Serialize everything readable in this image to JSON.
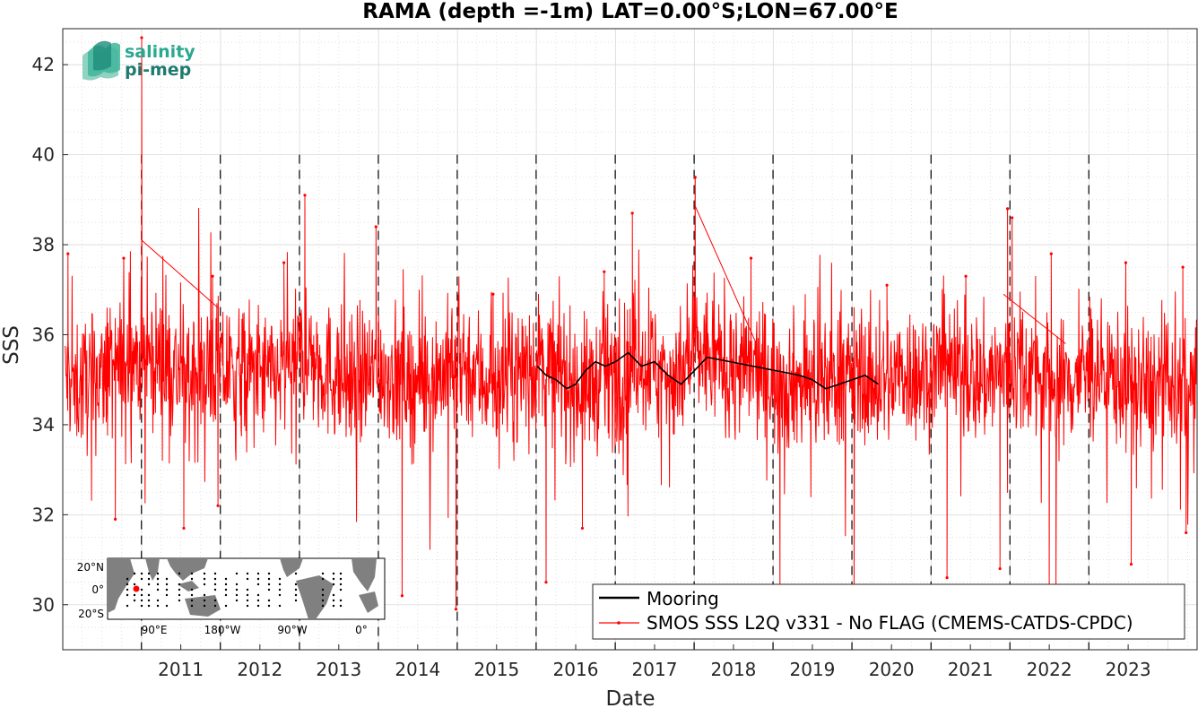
{
  "logo": {
    "line1": "salinity",
    "line2": "pi-mep"
  },
  "chart_data": {
    "type": "line",
    "title": "RAMA (depth =-1m) LAT=0.00°S;LON=67.00°E",
    "xlabel": "Date",
    "ylabel": "SSS",
    "xlim": [
      "2010-01-01",
      "2024-05-15"
    ],
    "ylim": [
      29,
      42.8
    ],
    "x_ticks": [
      "2011",
      "2012",
      "2013",
      "2014",
      "2015",
      "2016",
      "2017",
      "2018",
      "2019",
      "2020",
      "2021",
      "2022",
      "2023"
    ],
    "y_ticks": [
      30,
      32,
      34,
      36,
      38,
      40,
      42
    ],
    "grid": true,
    "legend": {
      "placement": "bottom-right"
    },
    "year_markers": [
      "2010-12-31",
      "2011-12-31",
      "2012-12-31",
      "2013-12-31",
      "2014-12-31",
      "2015-12-31",
      "2016-12-31",
      "2017-12-31",
      "2018-12-31",
      "2019-12-31",
      "2020-12-31",
      "2021-12-31",
      "2022-12-31"
    ],
    "series": [
      {
        "name": "Mooring",
        "color": "#000000",
        "x": [
          "2016-01-05",
          "2016-02-15",
          "2016-04-01",
          "2016-05-20",
          "2016-07-01",
          "2016-08-15",
          "2016-10-01",
          "2016-11-15",
          "2017-01-01",
          "2017-03-01",
          "2017-05-01",
          "2017-07-01",
          "2017-09-01",
          "2017-11-01",
          "2018-01-01",
          "2018-03-01",
          "2019-05-01",
          "2019-07-01",
          "2019-09-01",
          "2019-11-01",
          "2020-01-01",
          "2020-03-01",
          "2020-05-01"
        ],
        "y": [
          35.3,
          35.1,
          35.0,
          34.8,
          34.9,
          35.2,
          35.4,
          35.3,
          35.4,
          35.6,
          35.3,
          35.4,
          35.1,
          34.9,
          35.2,
          35.5,
          35.1,
          35.0,
          34.8,
          34.9,
          35.0,
          35.1,
          34.9
        ]
      },
      {
        "name": "SMOS SSS L2Q v331 - No FLAG  (CMEMS-CATDS-CPDC)",
        "color": "#ff0000",
        "x": [
          "2010-01-15",
          "2010-04-01",
          "2010-07-01",
          "2010-10-01",
          "2010-12-10",
          "2011-01-01",
          "2011-03-01",
          "2011-06-01",
          "2011-09-01",
          "2011-12-15",
          "2012-03-01",
          "2012-06-01",
          "2012-09-01",
          "2012-12-01",
          "2013-02-01",
          "2013-05-01",
          "2013-08-01",
          "2013-11-01",
          "2014-02-01",
          "2014-05-01",
          "2014-08-01",
          "2014-11-01",
          "2015-02-01",
          "2015-05-01",
          "2015-08-01",
          "2015-11-01",
          "2016-02-01",
          "2016-05-01",
          "2016-08-01",
          "2016-11-01",
          "2017-02-01",
          "2017-05-01",
          "2017-08-01",
          "2017-11-01",
          "2018-01-10",
          "2018-03-01",
          "2018-06-01",
          "2018-09-01",
          "2018-12-01",
          "2019-03-01",
          "2019-06-01",
          "2019-09-01",
          "2019-12-01",
          "2020-03-01",
          "2020-06-01",
          "2020-09-01",
          "2020-12-01",
          "2021-03-01",
          "2021-06-01",
          "2021-09-01",
          "2021-12-01",
          "2022-03-01",
          "2022-06-01",
          "2022-09-01",
          "2022-12-01",
          "2023-03-01",
          "2023-06-01",
          "2023-09-01",
          "2023-12-01",
          "2024-03-01"
        ],
        "y": [
          35.0,
          34.9,
          35.1,
          35.3,
          35.6,
          35.4,
          35.5,
          35.2,
          35.0,
          35.3,
          35.1,
          35.2,
          35.0,
          35.3,
          35.6,
          35.2,
          35.0,
          35.1,
          35.2,
          35.0,
          34.9,
          35.2,
          35.4,
          35.0,
          34.9,
          35.2,
          35.4,
          35.1,
          34.8,
          35.0,
          35.2,
          35.5,
          35.2,
          35.0,
          35.6,
          35.5,
          35.3,
          35.2,
          35.1,
          35.0,
          34.9,
          35.0,
          35.1,
          35.0,
          34.9,
          35.2,
          35.1,
          35.3,
          35.1,
          35.0,
          35.2,
          35.3,
          35.1,
          34.9,
          35.1,
          35.2,
          35.0,
          34.8,
          34.9,
          34.7
        ],
        "spikes_high": [
          [
            "2011-01-01",
            42.6
          ],
          [
            "2010-01-25",
            37.8
          ],
          [
            "2010-10-10",
            37.7
          ],
          [
            "2011-11-25",
            37.3
          ],
          [
            "2012-10-20",
            37.6
          ],
          [
            "2013-01-25",
            39.1
          ],
          [
            "2013-12-20",
            38.4
          ],
          [
            "2015-06-15",
            36.9
          ],
          [
            "2016-11-10",
            37.4
          ],
          [
            "2017-03-20",
            38.7
          ],
          [
            "2018-01-05",
            39.5
          ],
          [
            "2018-09-20",
            37.7
          ],
          [
            "2020-06-10",
            37.1
          ],
          [
            "2021-06-10",
            37.3
          ],
          [
            "2021-12-20",
            38.8
          ],
          [
            "2022-01-10",
            38.6
          ],
          [
            "2022-07-10",
            37.8
          ],
          [
            "2023-06-20",
            37.6
          ],
          [
            "2024-03-10",
            37.5
          ]
        ],
        "spikes_low": [
          [
            "2010-09-01",
            31.9
          ],
          [
            "2011-07-15",
            31.7
          ],
          [
            "2011-12-20",
            32.2
          ],
          [
            "2014-04-20",
            30.2
          ],
          [
            "2014-12-25",
            29.9
          ],
          [
            "2016-02-15",
            30.5
          ],
          [
            "2016-08-01",
            31.7
          ],
          [
            "2019-02-01",
            30.3
          ],
          [
            "2020-01-10",
            30.4
          ],
          [
            "2021-03-15",
            30.6
          ],
          [
            "2021-11-15",
            30.8
          ],
          [
            "2022-07-01",
            30.3
          ],
          [
            "2022-08-01",
            30.4
          ],
          [
            "2023-07-15",
            30.9
          ],
          [
            "2024-03-25",
            31.6
          ]
        ],
        "segments": [
          [
            [
              "2011-01-01",
              38.1
            ],
            [
              "2011-12-20",
              36.6
            ]
          ],
          [
            [
              "2018-01-01",
              38.9
            ],
            [
              "2018-10-15",
              35.8
            ]
          ],
          [
            [
              "2021-12-01",
              36.9
            ],
            [
              "2022-09-15",
              35.8
            ]
          ]
        ]
      }
    ]
  },
  "inset_map": {
    "lat_labels": [
      "20°N",
      "0°",
      "20°S"
    ],
    "lon_labels": [
      "90°E",
      "180°W",
      "90°W",
      "0°"
    ],
    "marker": {
      "lat": 0,
      "lon": 67
    }
  }
}
